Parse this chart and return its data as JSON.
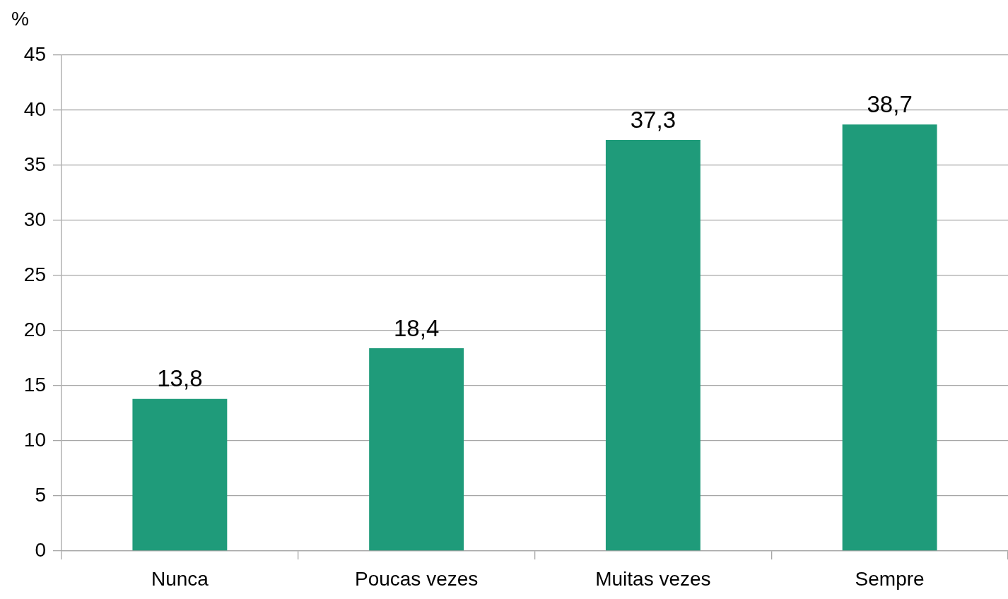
{
  "chart_data": {
    "type": "bar",
    "ylabel": "%",
    "categories": [
      "Nunca",
      "Poucas vezes",
      "Muitas vezes",
      "Sempre"
    ],
    "values": [
      13.8,
      18.4,
      37.3,
      38.7
    ],
    "color": "#1f9b7a",
    "value_labels": [
      "13,8",
      "18,4",
      "37,3",
      "38,7"
    ],
    "ylim": [
      0,
      45
    ],
    "yticks": [
      0,
      5,
      10,
      15,
      20,
      25,
      30,
      35,
      40,
      45
    ],
    "grid": "y"
  }
}
